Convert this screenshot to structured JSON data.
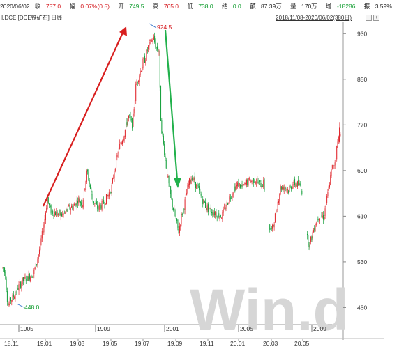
{
  "quote": {
    "date": "2020/06/02",
    "close_label": "收",
    "close": "757.0",
    "change_label": "幅",
    "change": "0.07%(0.5)",
    "open_label": "开",
    "open": "749.5",
    "high_label": "高",
    "high": "765.0",
    "low_label": "低",
    "low": "738.0",
    "settle_label": "结",
    "settle": "0.0",
    "amount_label": "额",
    "amount": "87.39万",
    "volume_label": "量",
    "volume": "170万",
    "oi_label": "增",
    "oi": "-18286",
    "amplitude_label": "振",
    "amplitude": "3.59%"
  },
  "sub": {
    "symbol": "I.DCE [DCE铁矿石] 日线",
    "range": "2018/11/08-2020/06/02(380日)",
    "btn_minus": "−",
    "btn_plus": "+"
  },
  "watermark": "Win.d",
  "chart_data": {
    "type": "candlestick",
    "ylim": [
      420,
      945
    ],
    "y_ticks": [
      930,
      850,
      770,
      690,
      610,
      530,
      450
    ],
    "x_ticks": [
      "18.11",
      "19.01",
      "19.03",
      "19.05",
      "19.07",
      "19.09",
      "19.11",
      "20.01",
      "20.03",
      "20.05"
    ],
    "year_markers": [
      "1905",
      "1909",
      "2001",
      "2005",
      "2009"
    ],
    "annotations": {
      "high_label": "924.5",
      "low_label": "448.0"
    },
    "colors": {
      "up": "#e0282e",
      "down": "#14a03c",
      "arrow_up": "#d81e1e",
      "arrow_down": "#22b14c"
    },
    "series_path": [
      [
        0,
        518
      ],
      [
        5,
        520
      ],
      [
        8,
        505
      ],
      [
        10,
        470
      ],
      [
        12,
        452
      ],
      [
        15,
        463
      ],
      [
        20,
        470
      ],
      [
        26,
        485
      ],
      [
        32,
        496
      ],
      [
        40,
        503
      ],
      [
        48,
        510
      ],
      [
        52,
        525
      ],
      [
        58,
        560
      ],
      [
        64,
        605
      ],
      [
        68,
        640
      ],
      [
        72,
        620
      ],
      [
        80,
        615
      ],
      [
        90,
        612
      ],
      [
        100,
        625
      ],
      [
        106,
        628
      ],
      [
        112,
        640
      ],
      [
        118,
        632
      ],
      [
        125,
        690
      ],
      [
        132,
        640
      ],
      [
        140,
        624
      ],
      [
        148,
        632
      ],
      [
        154,
        645
      ],
      [
        160,
        660
      ],
      [
        166,
        705
      ],
      [
        172,
        735
      ],
      [
        178,
        755
      ],
      [
        184,
        785
      ],
      [
        190,
        770
      ],
      [
        195,
        840
      ],
      [
        200,
        860
      ],
      [
        205,
        880
      ],
      [
        208,
        885
      ],
      [
        212,
        905
      ],
      [
        216,
        915
      ],
      [
        220,
        922
      ],
      [
        224,
        905
      ],
      [
        228,
        900
      ],
      [
        230,
        790
      ],
      [
        232,
        760
      ],
      [
        236,
        720
      ],
      [
        240,
        680
      ],
      [
        244,
        650
      ],
      [
        248,
        625
      ],
      [
        252,
        605
      ],
      [
        256,
        582
      ],
      [
        260,
        610
      ],
      [
        264,
        628
      ],
      [
        270,
        665
      ],
      [
        275,
        680
      ],
      [
        282,
        662
      ],
      [
        290,
        640
      ],
      [
        296,
        625
      ],
      [
        302,
        620
      ],
      [
        310,
        615
      ],
      [
        318,
        610
      ],
      [
        324,
        628
      ],
      [
        330,
        645
      ],
      [
        336,
        660
      ],
      [
        342,
        666
      ],
      [
        348,
        660
      ],
      [
        354,
        670
      ],
      [
        360,
        672
      ],
      [
        366,
        675
      ],
      [
        372,
        665
      ],
      [
        378,
        668
      ],
      [
        386,
        590
      ],
      [
        390,
        585
      ],
      [
        396,
        620
      ],
      [
        402,
        660
      ],
      [
        408,
        662
      ],
      [
        414,
        655
      ],
      [
        420,
        668
      ],
      [
        426,
        666
      ],
      [
        432,
        662
      ],
      [
        440,
        572
      ],
      [
        444,
        560
      ],
      [
        448,
        580
      ],
      [
        452,
        598
      ],
      [
        458,
        612
      ],
      [
        464,
        608
      ],
      [
        470,
        650
      ],
      [
        476,
        695
      ],
      [
        480,
        705
      ],
      [
        484,
        740
      ],
      [
        488,
        762
      ]
    ]
  }
}
